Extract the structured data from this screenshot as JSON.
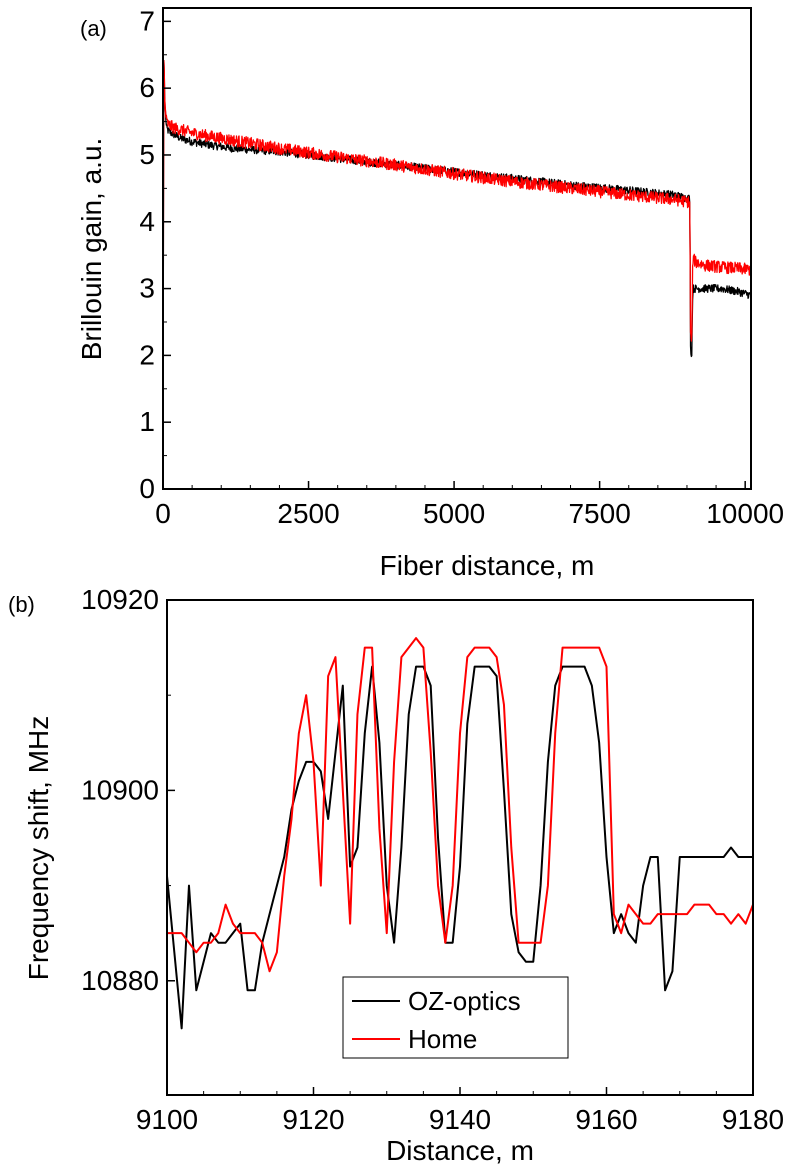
{
  "chart_data": [
    {
      "panel_label": "(a)",
      "type": "line",
      "xlabel": "Fiber distance, m",
      "ylabel": "Brillouin gain, a.u.",
      "xlim": [
        0,
        10100
      ],
      "ylim": [
        0,
        7.2
      ],
      "x_ticks": [
        0,
        2500,
        5000,
        7500,
        10000
      ],
      "x_tick_labels": [
        "0",
        "2500",
        "5000",
        "7500",
        "10000"
      ],
      "y_ticks": [
        0,
        1,
        2,
        3,
        4,
        5,
        6,
        7
      ],
      "y_tick_labels": [
        "0",
        "1",
        "2",
        "3",
        "4",
        "5",
        "6",
        "7"
      ],
      "grid": false,
      "series": [
        {
          "color": "#000000",
          "x": [
            0,
            8,
            15,
            30,
            60,
            100,
            200,
            300,
            500,
            800,
            1200,
            2000,
            3000,
            4000,
            5000,
            6000,
            7000,
            8000,
            8800,
            9000,
            9050,
            9060,
            9080,
            9100,
            9150,
            9300,
            9600,
            9900,
            10100
          ],
          "y": [
            0,
            4.3,
            6.6,
            5.8,
            5.4,
            5.35,
            5.3,
            5.25,
            5.2,
            5.15,
            5.1,
            5.05,
            4.95,
            4.85,
            4.75,
            4.65,
            4.55,
            4.47,
            4.4,
            4.35,
            4.35,
            2.2,
            1.9,
            3.0,
            3.0,
            3.0,
            3.0,
            2.95,
            2.9
          ],
          "noise": 0.06
        },
        {
          "color": "#ff0000",
          "x": [
            0,
            8,
            15,
            30,
            60,
            100,
            200,
            300,
            500,
            800,
            1200,
            2000,
            3000,
            4000,
            5000,
            6000,
            7000,
            8000,
            8800,
            9000,
            9050,
            9060,
            9080,
            9100,
            9150,
            9300,
            9600,
            9900,
            10100
          ],
          "y": [
            0,
            4.3,
            6.6,
            5.8,
            5.5,
            5.45,
            5.4,
            5.38,
            5.33,
            5.28,
            5.22,
            5.1,
            4.97,
            4.85,
            4.72,
            4.6,
            4.5,
            4.4,
            4.33,
            4.3,
            4.3,
            2.4,
            2.1,
            3.45,
            3.4,
            3.35,
            3.32,
            3.3,
            3.28
          ],
          "noise": 0.09
        }
      ]
    },
    {
      "panel_label": "(b)",
      "type": "line",
      "xlabel": "Distance, m",
      "ylabel": "Frequency shift, MHz",
      "xlim": [
        9100,
        9180
      ],
      "ylim": [
        10868,
        10920
      ],
      "x_ticks": [
        9100,
        9120,
        9140,
        9160,
        9180
      ],
      "x_tick_labels": [
        "9100",
        "9120",
        "9140",
        "9160",
        "9180"
      ],
      "y_ticks": [
        10880,
        10900,
        10920
      ],
      "y_tick_labels": [
        "10880",
        "10900",
        "10920"
      ],
      "grid": false,
      "legend": {
        "position": "bottom-center",
        "entries": [
          "OZ-optics",
          "Home"
        ]
      },
      "series": [
        {
          "name": "OZ-optics",
          "color": "#000000",
          "x": [
            9100,
            9101,
            9102,
            9103,
            9104,
            9105,
            9106,
            9107,
            9108,
            9109,
            9110,
            9111,
            9112,
            9113,
            9114,
            9115,
            9116,
            9117,
            9118,
            9119,
            9120,
            9121,
            9122,
            9123,
            9124,
            9125,
            9126,
            9127,
            9128,
            9129,
            9130,
            9131,
            9132,
            9133,
            9134,
            9135,
            9136,
            9137,
            9138,
            9139,
            9140,
            9141,
            9142,
            9143,
            9144,
            9145,
            9146,
            9147,
            9148,
            9149,
            9150,
            9151,
            9152,
            9153,
            9154,
            9155,
            9156,
            9157,
            9158,
            9159,
            9160,
            9161,
            9162,
            9163,
            9164,
            9165,
            9166,
            9167,
            9168,
            9169,
            9170,
            9171,
            9172,
            9173,
            9174,
            9175,
            9176,
            9177,
            9178,
            9179,
            9180
          ],
          "y": [
            10891,
            10883,
            10875,
            10890,
            10879,
            10882,
            10885,
            10884,
            10884,
            10885,
            10886,
            10879,
            10879,
            10884,
            10887,
            10890,
            10893,
            10898,
            10901,
            10903,
            10903,
            10902,
            10897,
            10904,
            10911,
            10892,
            10894,
            10906,
            10913,
            10905,
            10890,
            10884,
            10894,
            10908,
            10913,
            10913,
            10911,
            10895,
            10884,
            10884,
            10892,
            10907,
            10913,
            10913,
            10913,
            10912,
            10900,
            10887,
            10883,
            10882,
            10882,
            10890,
            10903,
            10911,
            10913,
            10913,
            10913,
            10913,
            10911,
            10905,
            10893,
            10885,
            10887,
            10885,
            10884,
            10890,
            10893,
            10893,
            10879,
            10881,
            10893,
            10893,
            10893,
            10893,
            10893,
            10893,
            10893,
            10894,
            10893,
            10893,
            10893
          ]
        },
        {
          "name": "Home",
          "color": "#ff0000",
          "x": [
            9100,
            9101,
            9102,
            9103,
            9104,
            9105,
            9106,
            9107,
            9108,
            9109,
            9110,
            9111,
            9112,
            9113,
            9114,
            9115,
            9116,
            9117,
            9118,
            9119,
            9120,
            9121,
            9122,
            9123,
            9124,
            9125,
            9126,
            9127,
            9128,
            9129,
            9130,
            9131,
            9132,
            9133,
            9134,
            9135,
            9136,
            9137,
            9138,
            9139,
            9140,
            9141,
            9142,
            9143,
            9144,
            9145,
            9146,
            9147,
            9148,
            9149,
            9150,
            9151,
            9152,
            9153,
            9154,
            9155,
            9156,
            9157,
            9158,
            9159,
            9160,
            9161,
            9162,
            9163,
            9164,
            9165,
            9166,
            9167,
            9168,
            9169,
            9170,
            9171,
            9172,
            9173,
            9174,
            9175,
            9176,
            9177,
            9178,
            9179,
            9180
          ],
          "y": [
            10885,
            10885,
            10885,
            10884,
            10883,
            10884,
            10884,
            10885,
            10888,
            10886,
            10885,
            10885,
            10885,
            10884,
            10881,
            10883,
            10891,
            10897,
            10906,
            10910,
            10903,
            10890,
            10912,
            10914,
            10900,
            10886,
            10908,
            10915,
            10915,
            10896,
            10885,
            10903,
            10914,
            10915,
            10916,
            10915,
            10904,
            10890,
            10884,
            10890,
            10906,
            10914,
            10915,
            10915,
            10915,
            10914,
            10909,
            10894,
            10884,
            10884,
            10884,
            10884,
            10890,
            10906,
            10915,
            10915,
            10915,
            10915,
            10915,
            10915,
            10913,
            10887,
            10885,
            10888,
            10887,
            10886,
            10886,
            10887,
            10887,
            10887,
            10887,
            10887,
            10888,
            10888,
            10888,
            10887,
            10887,
            10886,
            10887,
            10886,
            10888
          ]
        }
      ]
    }
  ]
}
